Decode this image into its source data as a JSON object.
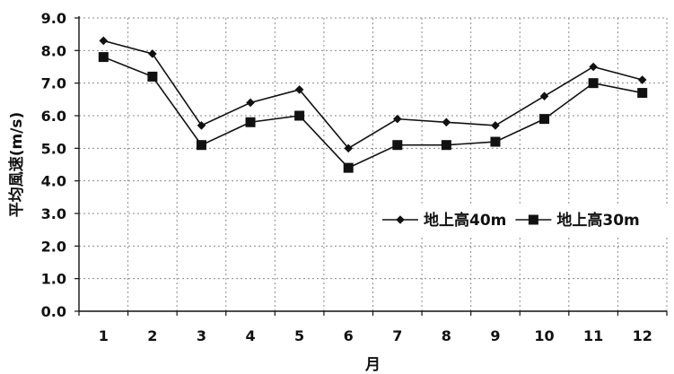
{
  "chart_data": {
    "type": "line",
    "title": "",
    "xlabel": "月",
    "ylabel": "平均風速(m/s)",
    "categories": [
      "1",
      "2",
      "3",
      "4",
      "5",
      "6",
      "7",
      "8",
      "9",
      "10",
      "11",
      "12"
    ],
    "ylim": [
      0,
      9
    ],
    "yticks": [
      "0.0",
      "1.0",
      "2.0",
      "3.0",
      "4.0",
      "5.0",
      "6.0",
      "7.0",
      "8.0",
      "9.0"
    ],
    "grid": true,
    "legend_position": "right",
    "series": [
      {
        "name": "地上高40m",
        "marker": "diamond",
        "color": "#111111",
        "values": [
          8.3,
          7.9,
          5.7,
          6.4,
          6.8,
          5.0,
          5.9,
          5.8,
          5.7,
          6.6,
          7.5,
          7.1
        ]
      },
      {
        "name": "地上高30m",
        "marker": "square",
        "color": "#111111",
        "values": [
          7.8,
          7.2,
          5.1,
          5.8,
          6.0,
          4.4,
          5.1,
          5.1,
          5.2,
          5.9,
          7.0,
          6.7
        ]
      }
    ]
  }
}
